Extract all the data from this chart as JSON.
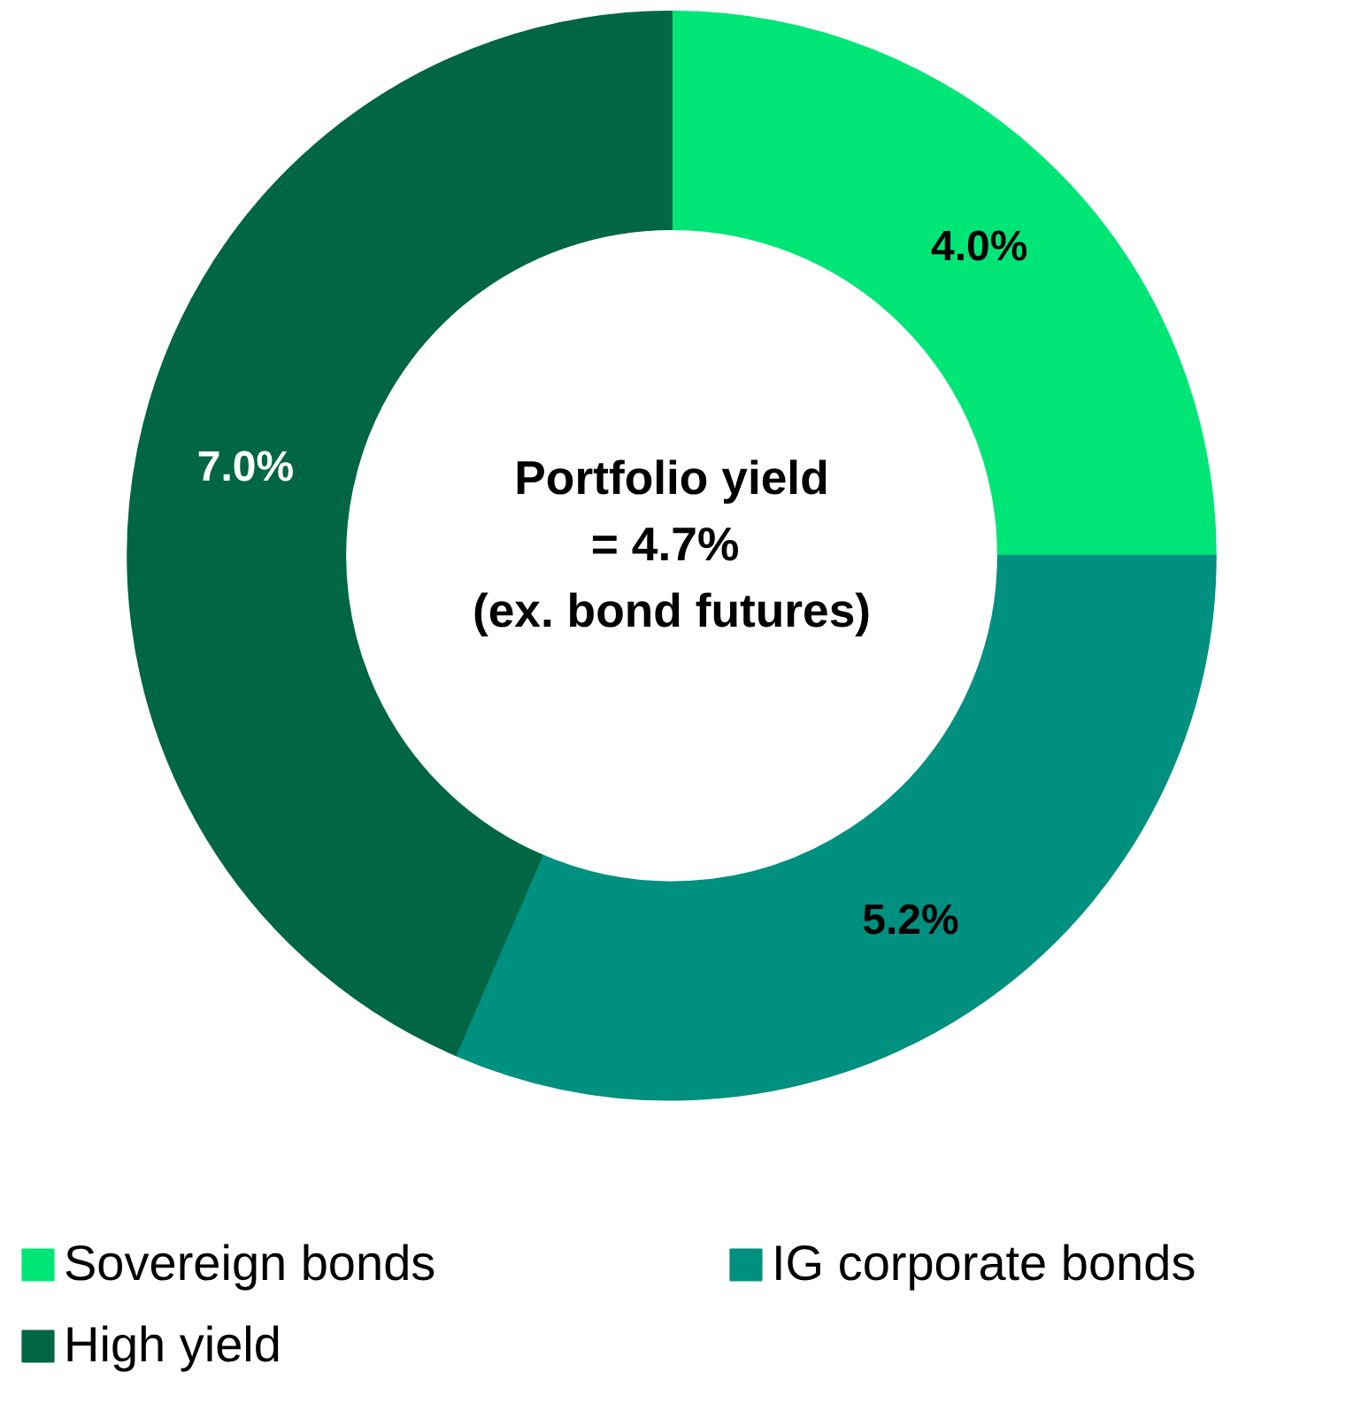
{
  "chart_data": {
    "type": "donut",
    "categories": [
      "Sovereign bonds",
      "IG corporate bonds",
      "High yield"
    ],
    "values": [
      25,
      31.5,
      43.5
    ],
    "colors": [
      "#00e676",
      "#009080",
      "#006644"
    ],
    "annotations": [
      {
        "text": "4.0%",
        "x": "Sovereign bonds"
      },
      {
        "text": "5.2%",
        "x": "IG corporate bonds"
      },
      {
        "text": "7.0%",
        "x": "High yield"
      },
      "Portfolio yield\n=  4.7%\n(ex. bond futures)"
    ],
    "legend": "bottom"
  }
}
